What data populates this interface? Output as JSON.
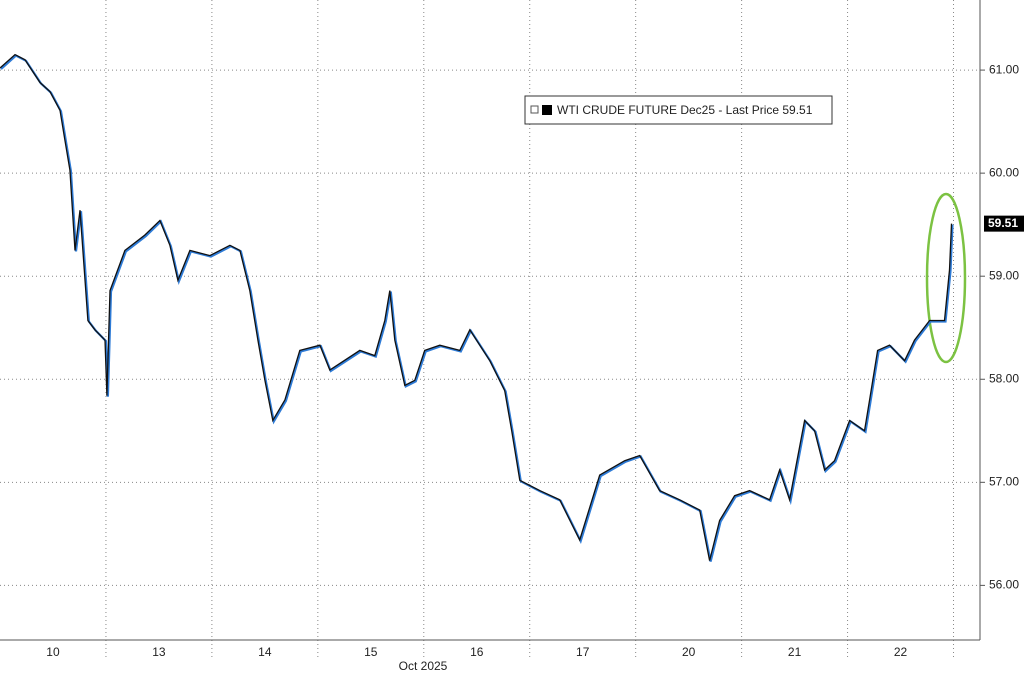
{
  "chart_data": {
    "type": "line",
    "x": [
      0,
      0.142,
      0.236,
      0.377,
      0.472,
      0.566,
      0.613,
      0.66,
      0.708,
      0.755,
      0.83,
      0.896,
      0.991,
      1.009,
      1.038,
      1.179,
      1.368,
      1.509,
      1.604,
      1.679,
      1.792,
      1.981,
      2.17,
      2.264,
      2.358,
      2.434,
      2.5,
      2.575,
      2.689,
      2.83,
      3.019,
      3.113,
      3.396,
      3.538,
      3.632,
      3.679,
      3.726,
      3.821,
      3.915,
      4.009,
      4.151,
      4.34,
      4.434,
      4.623,
      4.764,
      4.83,
      4.906,
      5.094,
      5.283,
      5.472,
      5.66,
      5.896,
      6.038,
      6.226,
      6.415,
      6.604,
      6.698,
      6.792,
      6.934,
      7.075,
      7.264,
      7.358,
      7.453,
      7.594,
      7.689,
      7.783,
      7.877,
      8.019,
      8.16,
      8.208,
      8.283,
      8.396,
      8.538,
      8.632,
      8.774,
      8.915,
      8.962,
      8.981
    ],
    "series": [
      {
        "name": "WTI CRUDE FUTURE Dec25 - Last Price 59.51",
        "color": "#111111",
        "values": [
          61.02,
          61.15,
          61.1,
          60.88,
          60.79,
          60.61,
          60.32,
          60.03,
          59.25,
          59.64,
          58.57,
          58.48,
          58.38,
          57.84,
          58.86,
          59.25,
          59.4,
          59.54,
          59.3,
          58.96,
          59.25,
          59.2,
          59.3,
          59.25,
          58.86,
          58.38,
          57.99,
          57.6,
          57.8,
          58.28,
          58.33,
          58.09,
          58.28,
          58.23,
          58.57,
          58.86,
          58.38,
          57.94,
          57.99,
          58.28,
          58.33,
          58.28,
          58.48,
          58.18,
          57.89,
          57.5,
          57.02,
          56.92,
          56.83,
          56.44,
          57.07,
          57.21,
          57.26,
          56.92,
          56.83,
          56.73,
          56.24,
          56.63,
          56.87,
          56.92,
          56.83,
          57.12,
          56.83,
          57.6,
          57.5,
          57.12,
          57.21,
          57.6,
          57.5,
          57.8,
          58.28,
          58.33,
          58.18,
          58.38,
          58.57,
          58.57,
          59.06,
          59.51
        ]
      }
    ],
    "last_price": {
      "value": 59.51,
      "label": "59.51"
    },
    "xlim": [
      0,
      9.25
    ],
    "xticks": [
      {
        "value": 0.5,
        "label": "10"
      },
      {
        "value": 1.5,
        "label": "13"
      },
      {
        "value": 2.5,
        "label": "14"
      },
      {
        "value": 3.5,
        "label": "15"
      },
      {
        "value": 4.5,
        "label": "16"
      },
      {
        "value": 5.5,
        "label": "17"
      },
      {
        "value": 6.5,
        "label": "20"
      },
      {
        "value": 7.5,
        "label": "21"
      },
      {
        "value": 8.5,
        "label": "22"
      }
    ],
    "x_label": "Oct 2025",
    "ylim": [
      55.47,
      61.68
    ],
    "yticks": [
      {
        "value": 56,
        "label": "56.00"
      },
      {
        "value": 57,
        "label": "57.00"
      },
      {
        "value": 58,
        "label": "58.00"
      },
      {
        "value": 59,
        "label": "59.00"
      },
      {
        "value": 60,
        "label": "60.00"
      },
      {
        "value": 61,
        "label": "61.00"
      }
    ],
    "grid": true
  }
}
